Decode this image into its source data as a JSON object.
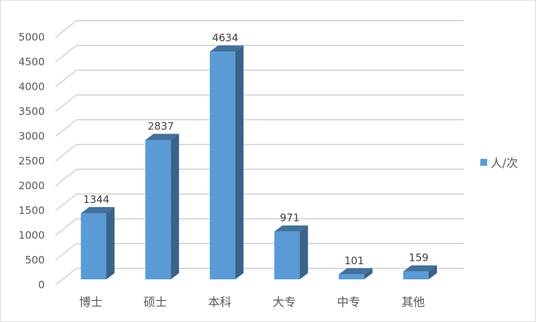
{
  "chart_data": {
    "type": "bar",
    "style": "3d-column",
    "categories": [
      "博士",
      "硕士",
      "本科",
      "大专",
      "中专",
      "其他"
    ],
    "series": [
      {
        "name": "人/次",
        "values": [
          1344,
          2837,
          4634,
          971,
          101,
          159
        ]
      }
    ],
    "ylim": [
      0,
      5000
    ],
    "yticks": [
      0,
      500,
      1000,
      1500,
      2000,
      2500,
      3000,
      3500,
      4000,
      4500,
      5000
    ],
    "grid": true,
    "data_labels": true,
    "legend": "right",
    "colors": {
      "front": "#5b9bd5",
      "top": "#41719c",
      "side": "#3a6389",
      "grid": "#d9d9d9"
    }
  }
}
